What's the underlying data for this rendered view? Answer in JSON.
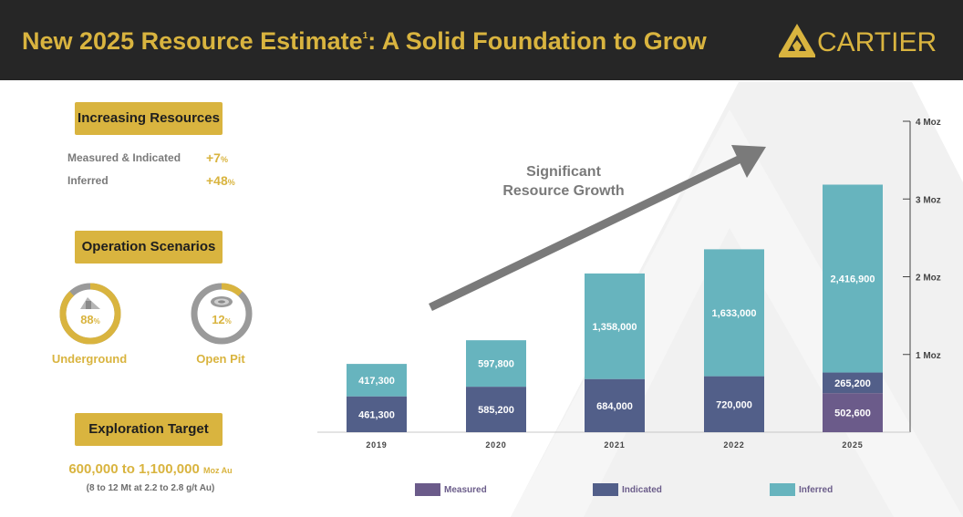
{
  "header": {
    "title": "New 2025 Resource Estimate",
    "title_sup": "1",
    "title_rest": ": A Solid Foundation to Grow",
    "logo_text": "CARTIER"
  },
  "resources": {
    "heading": "Increasing Resources",
    "rows": [
      {
        "label": "Measured & Indicated",
        "value": "+7",
        "unit": "%"
      },
      {
        "label": "Inferred",
        "value": "+48",
        "unit": "%"
      }
    ]
  },
  "operations": {
    "heading": "Operation Scenarios",
    "scenarios": [
      {
        "label": "Underground",
        "percent": 88,
        "pct_text": "88",
        "unit": "%",
        "icon": "underground-mine-icon"
      },
      {
        "label": "Open Pit",
        "percent": 12,
        "pct_text": "12",
        "unit": "%",
        "icon": "open-pit-icon"
      }
    ]
  },
  "exploration": {
    "heading": "Exploration Target",
    "value": "600,000 to 1,100,000",
    "unit": "Moz Au",
    "sub": "(8 to 12 Mt at 2.2 to 2.8 g/t Au)"
  },
  "callout": {
    "line1": "Significant",
    "line2": "Resource Growth"
  },
  "colors": {
    "gold": "#d9b43f",
    "header_bg": "#262626",
    "measured": "#6b5b8a",
    "indicated": "#525f89",
    "inferred": "#67b4be",
    "arrow": "#7a7a7a",
    "gray_ring": "#9a9a9a"
  },
  "chart_data": {
    "type": "bar",
    "stacked": true,
    "categories": [
      "2019",
      "2020",
      "2021",
      "2022",
      "2025"
    ],
    "series": [
      {
        "name": "Measured",
        "values": [
          0,
          0,
          0,
          0,
          502600
        ],
        "labels": [
          "",
          "",
          "",
          "",
          "502,600"
        ]
      },
      {
        "name": "Indicated",
        "values": [
          461300,
          585200,
          684000,
          720000,
          265200
        ],
        "labels": [
          "461,300",
          "585,200",
          "684,000",
          "720,000",
          "265,200"
        ]
      },
      {
        "name": "Inferred",
        "values": [
          417300,
          597800,
          1358000,
          1633000,
          2416900
        ],
        "labels": [
          "417,300",
          "597,800",
          "1,358,000",
          "1,633,000",
          "2,416,900"
        ]
      }
    ],
    "y_axis": {
      "min": 0,
      "max": 4000000,
      "ticks": [
        1000000,
        2000000,
        3000000,
        4000000
      ],
      "tick_labels": [
        "1 Moz",
        "2 Moz",
        "3 Moz",
        "4 Moz"
      ],
      "position": "right"
    },
    "legend": [
      "Measured",
      "Indicated",
      "Inferred"
    ],
    "legend_position": "bottom"
  }
}
